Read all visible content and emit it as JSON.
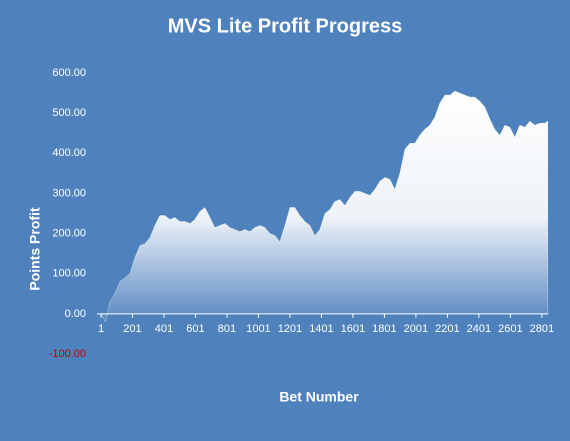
{
  "chart_data": {
    "type": "area",
    "title": "MVS Lite Profit Progress",
    "x_label": "Bet Number",
    "y_label": "Points Profit",
    "x": [
      1,
      30,
      58,
      89,
      121,
      153,
      185,
      216,
      248,
      280,
      312,
      343,
      375,
      407,
      439,
      470,
      502,
      534,
      566,
      597,
      629,
      661,
      693,
      724,
      756,
      788,
      820,
      851,
      883,
      915,
      947,
      978,
      1010,
      1042,
      1074,
      1105,
      1137,
      1169,
      1201,
      1232,
      1264,
      1296,
      1328,
      1359,
      1391,
      1423,
      1455,
      1486,
      1518,
      1550,
      1582,
      1613,
      1645,
      1677,
      1709,
      1740,
      1772,
      1804,
      1836,
      1867,
      1899,
      1931,
      1963,
      1994,
      2026,
      2058,
      2090,
      2121,
      2153,
      2185,
      2217,
      2248,
      2280,
      2312,
      2344,
      2375,
      2407,
      2439,
      2471,
      2502,
      2534,
      2566,
      2598,
      2629,
      2661,
      2693,
      2725,
      2756,
      2788,
      2820,
      2839
    ],
    "values": [
      0,
      -20,
      30,
      50,
      80,
      90,
      100,
      140,
      170,
      175,
      190,
      220,
      245,
      245,
      235,
      240,
      230,
      230,
      225,
      235,
      255,
      265,
      240,
      215,
      220,
      225,
      215,
      210,
      205,
      210,
      205,
      215,
      220,
      215,
      200,
      195,
      180,
      220,
      265,
      265,
      245,
      230,
      220,
      195,
      210,
      250,
      260,
      280,
      285,
      270,
      290,
      305,
      305,
      300,
      295,
      310,
      330,
      340,
      335,
      310,
      350,
      410,
      425,
      425,
      445,
      460,
      470,
      490,
      525,
      545,
      545,
      555,
      550,
      545,
      540,
      540,
      530,
      515,
      485,
      460,
      445,
      470,
      465,
      440,
      470,
      465,
      480,
      470,
      475,
      475,
      480
    ],
    "color": "#ffffff",
    "xlim": [
      1,
      2840
    ],
    "xticks": [
      1,
      201,
      401,
      601,
      801,
      1001,
      1201,
      1401,
      1601,
      1801,
      2001,
      2201,
      2401,
      2601,
      2801
    ],
    "ylim": [
      -100,
      600
    ],
    "yticks": [
      {
        "value": -100,
        "label": "-100.00"
      },
      {
        "value": 0,
        "label": "0.00"
      },
      {
        "value": 100,
        "label": "100.00"
      },
      {
        "value": 200,
        "label": "200.00"
      },
      {
        "value": 300,
        "label": "300.00"
      },
      {
        "value": 400,
        "label": "400.00"
      },
      {
        "value": 500,
        "label": "500.00"
      },
      {
        "value": 600,
        "label": "600.00"
      }
    ],
    "negative_tick_color": "#c00000",
    "grid": false
  }
}
